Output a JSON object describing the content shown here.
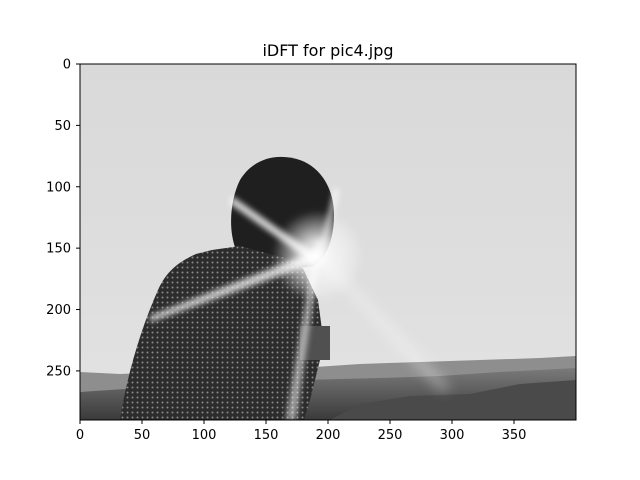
{
  "chart_data": {
    "type": "image",
    "title": "iDFT for pic4.jpg",
    "colormap": "gray",
    "xlim": [
      0,
      400
    ],
    "ylim": [
      290,
      0
    ],
    "x_ticks": [
      0,
      50,
      100,
      150,
      200,
      250,
      300,
      350
    ],
    "y_ticks": [
      0,
      50,
      100,
      150,
      200,
      250
    ],
    "grid": false
  }
}
